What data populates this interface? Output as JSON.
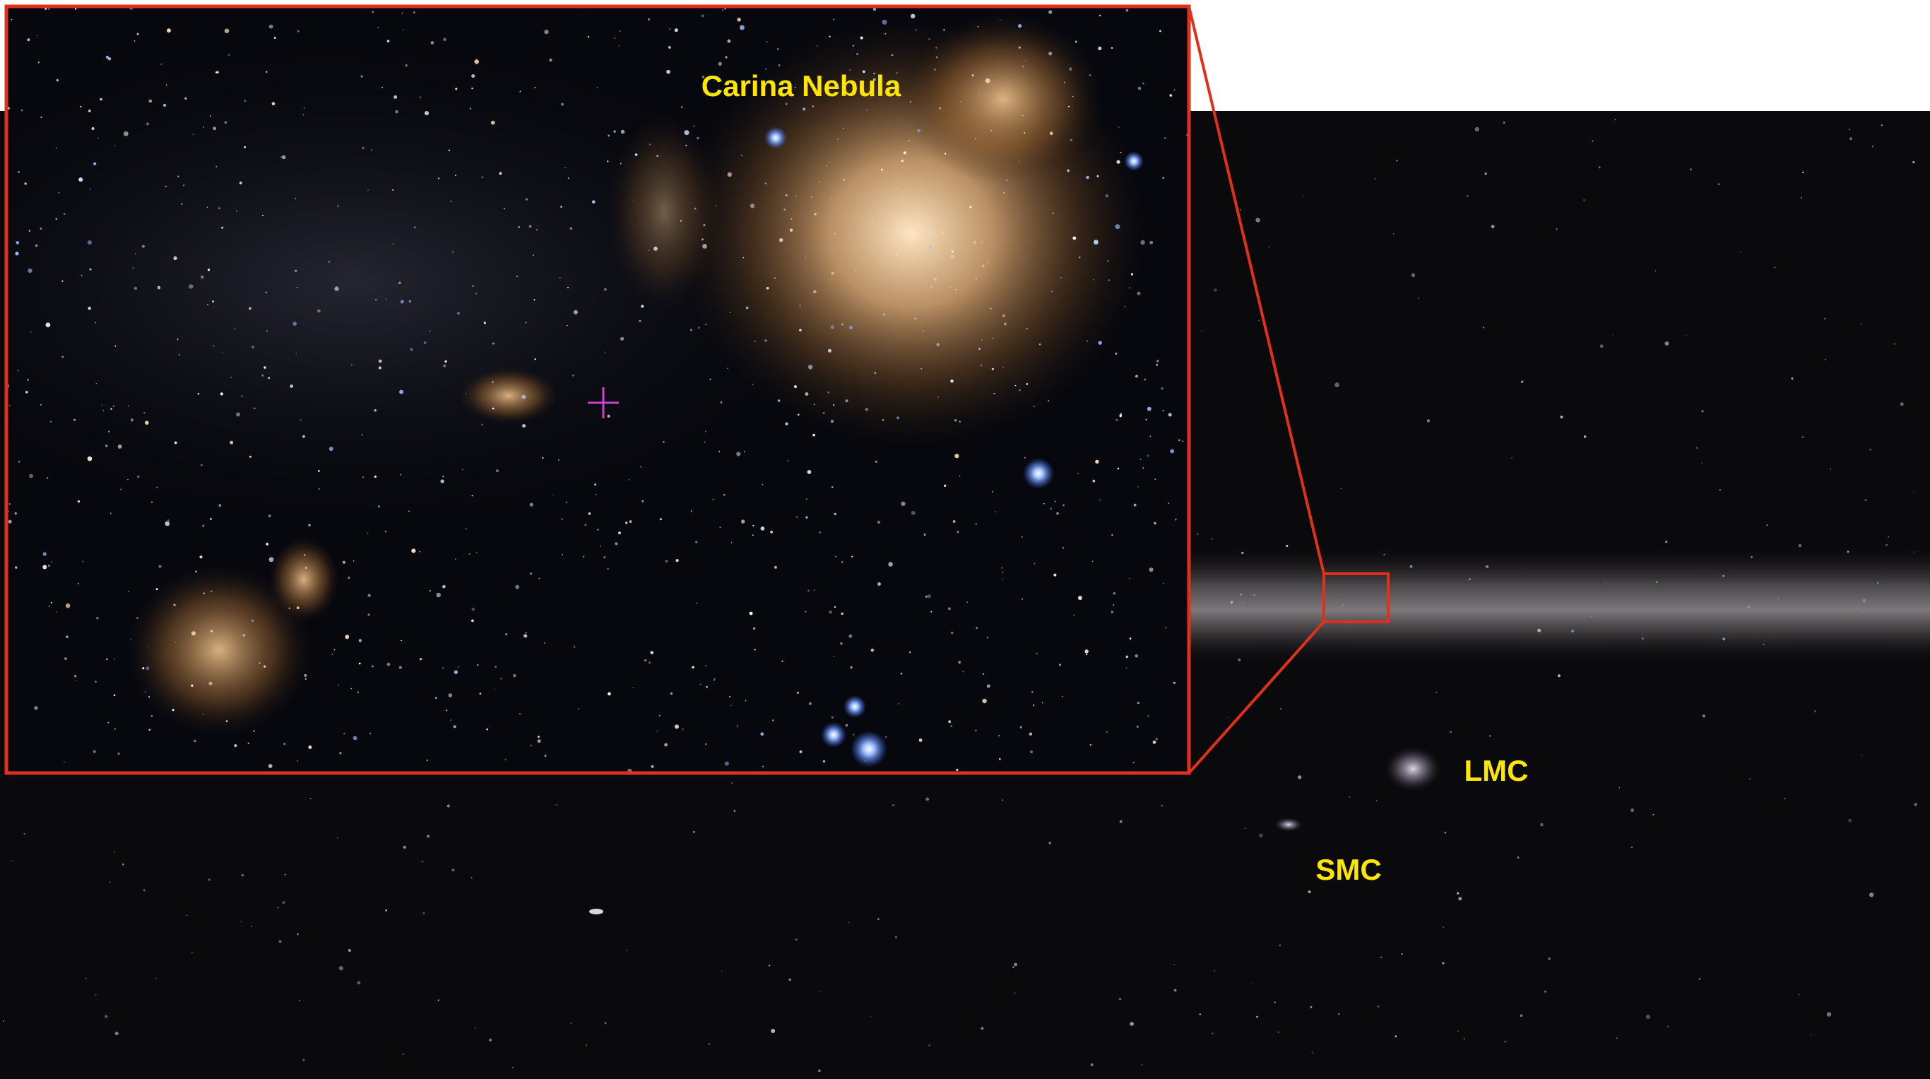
{
  "labels": {
    "inset": "Carina Nebula",
    "lmc": "LMC",
    "smc": "SMC"
  }
}
